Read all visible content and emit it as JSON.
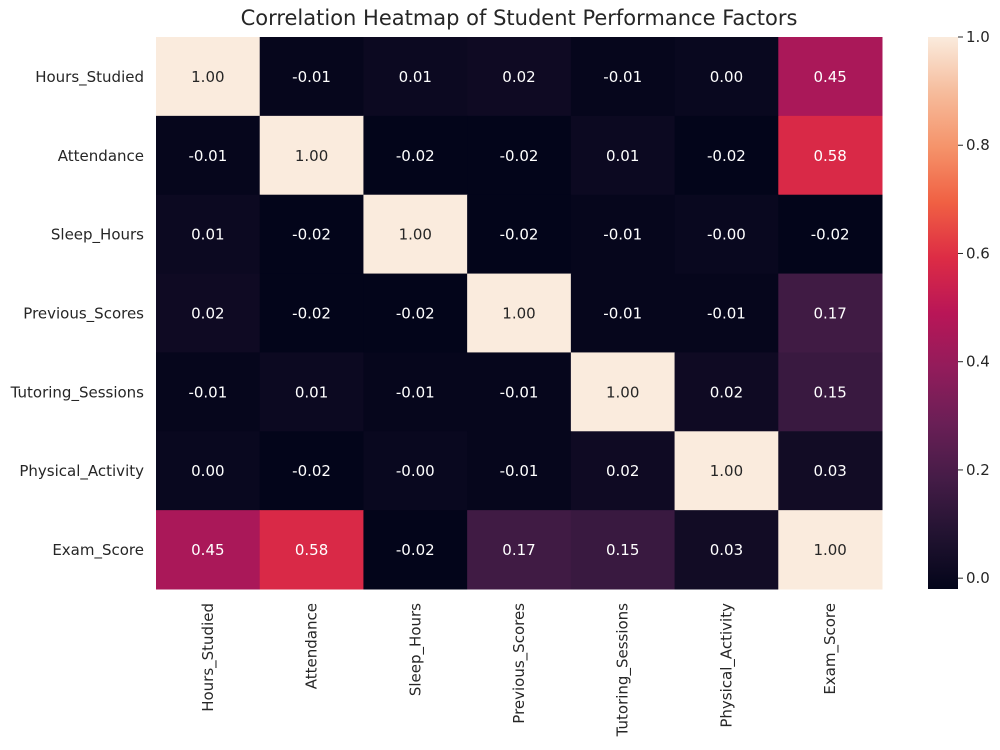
{
  "chart_data": {
    "type": "heatmap",
    "title": "Correlation Heatmap of Student Performance Factors",
    "xlabel": "",
    "ylabel": "",
    "row_labels": [
      "Hours_Studied",
      "Attendance",
      "Sleep_Hours",
      "Previous_Scores",
      "Tutoring_Sessions",
      "Physical_Activity",
      "Exam_Score"
    ],
    "col_labels": [
      "Hours_Studied",
      "Attendance",
      "Sleep_Hours",
      "Previous_Scores",
      "Tutoring_Sessions",
      "Physical_Activity",
      "Exam_Score"
    ],
    "values": [
      [
        1.0,
        -0.01,
        0.01,
        0.02,
        -0.01,
        0.0,
        0.45
      ],
      [
        -0.01,
        1.0,
        -0.02,
        -0.02,
        0.01,
        -0.02,
        0.58
      ],
      [
        0.01,
        -0.02,
        1.0,
        -0.02,
        -0.01,
        -0.0,
        -0.02
      ],
      [
        0.02,
        -0.02,
        -0.02,
        1.0,
        -0.01,
        -0.01,
        0.17
      ],
      [
        -0.01,
        0.01,
        -0.01,
        -0.01,
        1.0,
        0.02,
        0.15
      ],
      [
        0.0,
        -0.02,
        -0.0,
        -0.01,
        0.02,
        1.0,
        0.03
      ],
      [
        0.45,
        0.58,
        -0.02,
        0.17,
        0.15,
        0.03,
        1.0
      ]
    ],
    "labels": [
      [
        "1.00",
        "-0.01",
        "0.01",
        "0.02",
        "-0.01",
        "0.00",
        "0.45"
      ],
      [
        "-0.01",
        "1.00",
        "-0.02",
        "-0.02",
        "0.01",
        "-0.02",
        "0.58"
      ],
      [
        "0.01",
        "-0.02",
        "1.00",
        "-0.02",
        "-0.01",
        "-0.00",
        "-0.02"
      ],
      [
        "0.02",
        "-0.02",
        "-0.02",
        "1.00",
        "-0.01",
        "-0.01",
        "0.17"
      ],
      [
        "-0.01",
        "0.01",
        "-0.01",
        "-0.01",
        "1.00",
        "0.02",
        "0.15"
      ],
      [
        "0.00",
        "-0.02",
        "-0.00",
        "-0.01",
        "0.02",
        "1.00",
        "0.03"
      ],
      [
        "0.45",
        "0.58",
        "-0.02",
        "0.17",
        "0.15",
        "0.03",
        "1.00"
      ]
    ],
    "colorbar": {
      "range": [
        -0.02,
        1.0
      ],
      "ticks": [
        0.0,
        0.2,
        0.4,
        0.6,
        0.8,
        1.0
      ],
      "tick_labels": [
        "0.0",
        "0.2",
        "0.4",
        "0.6",
        "0.8",
        "1.0"
      ]
    },
    "colormap": "rocket",
    "colormap_stops": [
      "#03051a",
      "#221331",
      "#451c47",
      "#6a1f56",
      "#921c5b",
      "#b91657",
      "#dd2c45",
      "#f06043",
      "#f5936a",
      "#f6bc9c",
      "#faebdd"
    ],
    "text_colors": {
      "light_cell": "#262626",
      "dark_cell": "#ffffff"
    },
    "grid": false,
    "colorbar_position": "right"
  }
}
